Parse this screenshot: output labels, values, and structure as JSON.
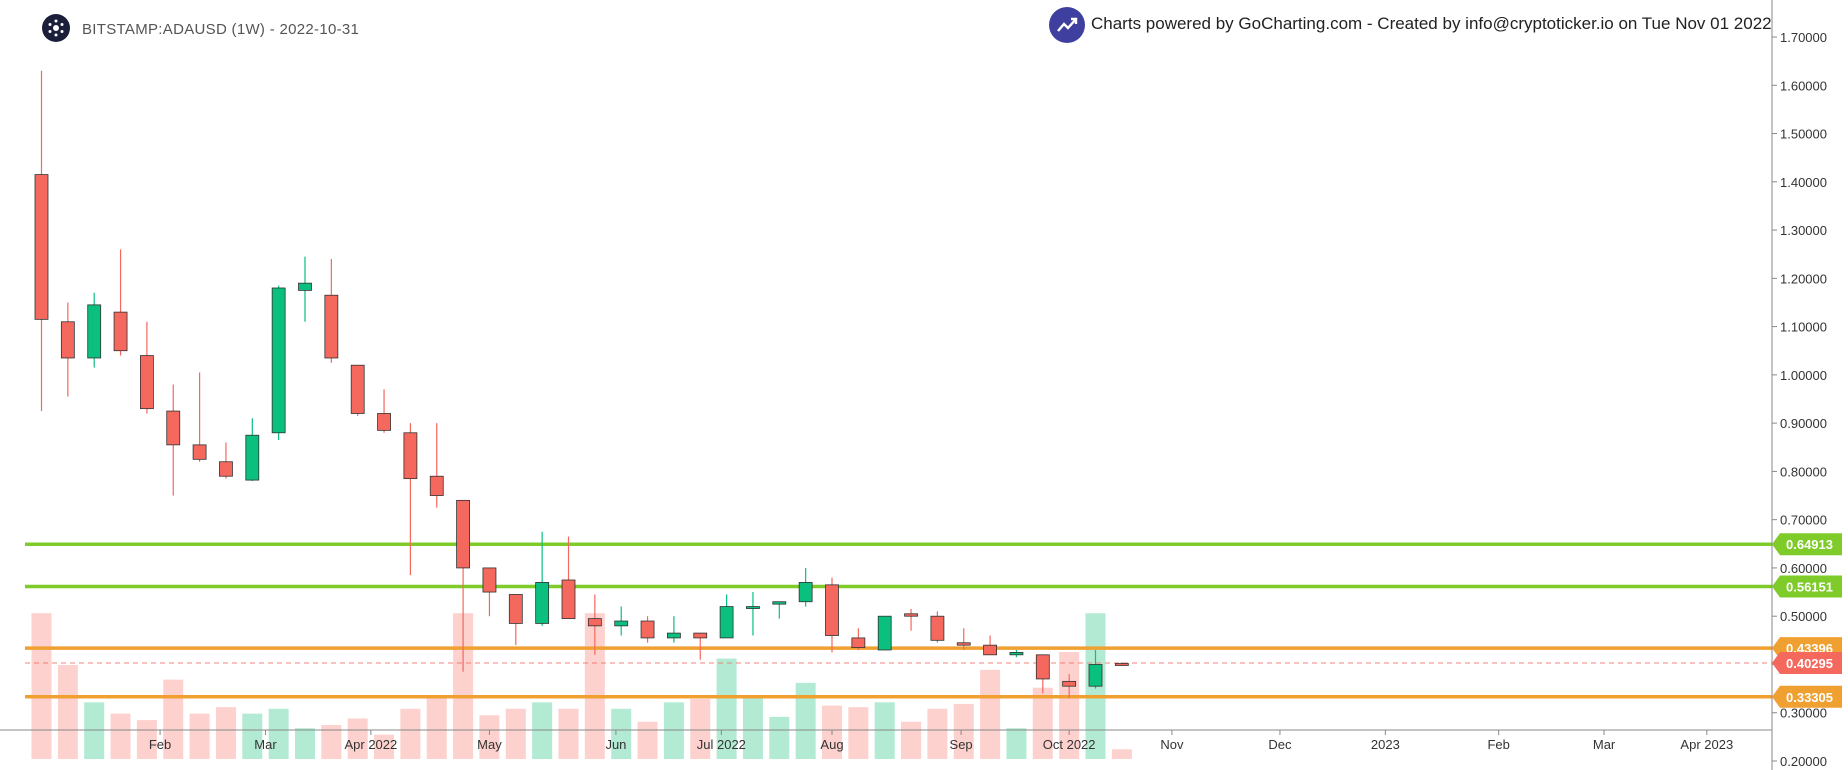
{
  "header": {
    "symbol_title": "BITSTAMP:ADAUSD (1W) - 2022-10-31",
    "powered_by": "Charts powered by GoCharting.com - Created by info@cryptoticker.io on Tue Nov 01 2022"
  },
  "icons": {
    "symbol_logo": "cardano-logo-icon",
    "brand_logo": "gocharting-trend-icon"
  },
  "colors": {
    "up": "#0bbf7e",
    "down": "#f4685e",
    "green_level": "#7ecb2a",
    "orange_level": "#f0a030",
    "current": "#f4685e",
    "up_volume": "#b3ead3",
    "down_volume": "#fdd1cd"
  },
  "chart_data": {
    "type": "candlestick",
    "interval": "1W",
    "y_axis": {
      "range": [
        0.2,
        1.7
      ],
      "ticks": [
        "0.20000",
        "0.30000",
        "0.40000",
        "0.50000",
        "0.60000",
        "0.70000",
        "0.80000",
        "0.90000",
        "1.00000",
        "1.10000",
        "1.20000",
        "1.30000",
        "1.40000",
        "1.50000",
        "1.60000",
        "1.70000"
      ]
    },
    "x_ticks": [
      "Feb",
      "Mar",
      "Apr 2022",
      "May",
      "Jun",
      "Jul 2022",
      "Aug",
      "Sep",
      "Oct 2022",
      "Nov",
      "Dec",
      "2023",
      "Feb",
      "Mar",
      "Apr 2023"
    ],
    "x_tick_weeks": [
      4.5,
      8.5,
      12.5,
      17,
      21.8,
      25.8,
      30,
      34.9,
      39,
      42.9,
      47,
      51,
      55.3,
      59.3,
      63.2
    ],
    "grid": false,
    "candles": [
      {
        "o": 1.415,
        "h": 1.63,
        "l": 0.925,
        "c": 1.115
      },
      {
        "o": 1.11,
        "h": 1.15,
        "l": 0.955,
        "c": 1.035
      },
      {
        "o": 1.035,
        "h": 1.17,
        "l": 1.015,
        "c": 1.145
      },
      {
        "o": 1.13,
        "h": 1.26,
        "l": 1.04,
        "c": 1.05
      },
      {
        "o": 1.04,
        "h": 1.11,
        "l": 0.92,
        "c": 0.93
      },
      {
        "o": 0.925,
        "h": 0.98,
        "l": 0.75,
        "c": 0.855
      },
      {
        "o": 0.855,
        "h": 1.005,
        "l": 0.82,
        "c": 0.825
      },
      {
        "o": 0.82,
        "h": 0.86,
        "l": 0.785,
        "c": 0.79
      },
      {
        "o": 0.782,
        "h": 0.91,
        "l": 0.78,
        "c": 0.875
      },
      {
        "o": 0.88,
        "h": 1.185,
        "l": 0.865,
        "c": 1.18
      },
      {
        "o": 1.175,
        "h": 1.245,
        "l": 1.11,
        "c": 1.19
      },
      {
        "o": 1.165,
        "h": 1.24,
        "l": 1.025,
        "c": 1.035
      },
      {
        "o": 1.02,
        "h": 1.02,
        "l": 0.915,
        "c": 0.92
      },
      {
        "o": 0.92,
        "h": 0.97,
        "l": 0.88,
        "c": 0.885
      },
      {
        "o": 0.88,
        "h": 0.9,
        "l": 0.585,
        "c": 0.785
      },
      {
        "o": 0.79,
        "h": 0.9,
        "l": 0.725,
        "c": 0.75
      },
      {
        "o": 0.74,
        "h": 0.74,
        "l": 0.385,
        "c": 0.6
      },
      {
        "o": 0.6,
        "h": 0.6,
        "l": 0.5,
        "c": 0.55
      },
      {
        "o": 0.545,
        "h": 0.545,
        "l": 0.44,
        "c": 0.485
      },
      {
        "o": 0.485,
        "h": 0.675,
        "l": 0.48,
        "c": 0.57
      },
      {
        "o": 0.575,
        "h": 0.665,
        "l": 0.495,
        "c": 0.495
      },
      {
        "o": 0.495,
        "h": 0.545,
        "l": 0.42,
        "c": 0.48
      },
      {
        "o": 0.48,
        "h": 0.52,
        "l": 0.46,
        "c": 0.49
      },
      {
        "o": 0.49,
        "h": 0.5,
        "l": 0.445,
        "c": 0.455
      },
      {
        "o": 0.455,
        "h": 0.5,
        "l": 0.445,
        "c": 0.465
      },
      {
        "o": 0.465,
        "h": 0.465,
        "l": 0.41,
        "c": 0.455
      },
      {
        "o": 0.455,
        "h": 0.545,
        "l": 0.455,
        "c": 0.52
      },
      {
        "o": 0.52,
        "h": 0.55,
        "l": 0.46,
        "c": 0.52
      },
      {
        "o": 0.525,
        "h": 0.53,
        "l": 0.495,
        "c": 0.53
      },
      {
        "o": 0.53,
        "h": 0.6,
        "l": 0.52,
        "c": 0.57
      },
      {
        "o": 0.565,
        "h": 0.58,
        "l": 0.425,
        "c": 0.46
      },
      {
        "o": 0.455,
        "h": 0.475,
        "l": 0.43,
        "c": 0.435
      },
      {
        "o": 0.43,
        "h": 0.5,
        "l": 0.43,
        "c": 0.5
      },
      {
        "o": 0.505,
        "h": 0.515,
        "l": 0.47,
        "c": 0.5
      },
      {
        "o": 0.5,
        "h": 0.51,
        "l": 0.445,
        "c": 0.45
      },
      {
        "o": 0.445,
        "h": 0.475,
        "l": 0.43,
        "c": 0.44
      },
      {
        "o": 0.44,
        "h": 0.46,
        "l": 0.42,
        "c": 0.42
      },
      {
        "o": 0.42,
        "h": 0.43,
        "l": 0.415,
        "c": 0.425
      },
      {
        "o": 0.42,
        "h": 0.42,
        "l": 0.34,
        "c": 0.37
      },
      {
        "o": 0.365,
        "h": 0.38,
        "l": 0.33,
        "c": 0.355
      },
      {
        "o": 0.355,
        "h": 0.43,
        "l": 0.35,
        "c": 0.4
      },
      {
        "o": 0.402,
        "h": 0.405,
        "l": 0.398,
        "c": 0.4
      }
    ],
    "volume": [
      0.9,
      0.58,
      0.35,
      0.28,
      0.24,
      0.49,
      0.28,
      0.32,
      0.28,
      0.31,
      0.19,
      0.21,
      0.25,
      0.15,
      0.31,
      0.38,
      0.9,
      0.27,
      0.31,
      0.35,
      0.31,
      0.9,
      0.31,
      0.23,
      0.35,
      0.37,
      0.62,
      0.39,
      0.26,
      0.47,
      0.33,
      0.32,
      0.35,
      0.23,
      0.31,
      0.34,
      0.55,
      0.19,
      0.44,
      0.66,
      0.9,
      0.06
    ],
    "levels": [
      {
        "value": 0.64913,
        "label": "0.64913",
        "kind": "green"
      },
      {
        "value": 0.56151,
        "label": "0.56151",
        "kind": "green"
      },
      {
        "value": 0.43396,
        "label": "0.43396",
        "kind": "orange"
      },
      {
        "value": 0.33305,
        "label": "0.33305",
        "kind": "orange"
      }
    ],
    "last_price": {
      "value": 0.40295,
      "label": "0.40295"
    }
  }
}
